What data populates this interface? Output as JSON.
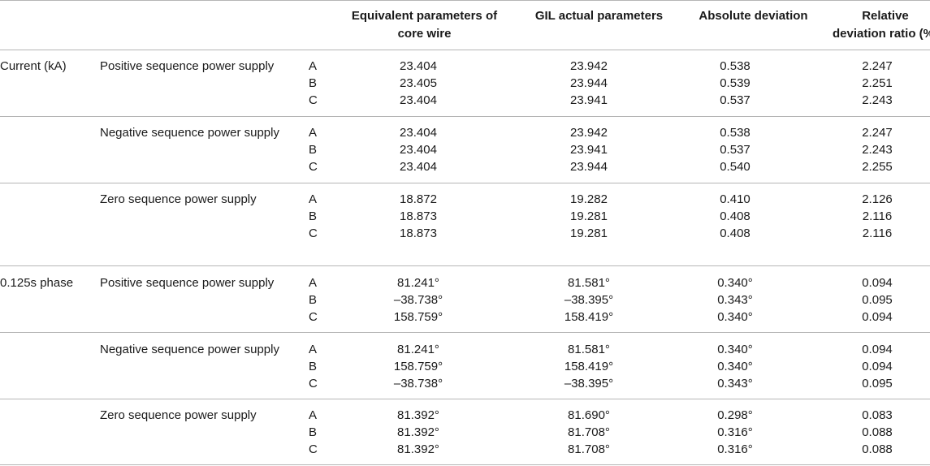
{
  "headers": {
    "equivalent": [
      "Equivalent parameters of",
      "core wire"
    ],
    "gil": "GIL actual parameters",
    "absolute": "Absolute deviation",
    "relative": [
      "Relative",
      "deviation ratio (%)"
    ]
  },
  "groups": [
    {
      "label": "Current (kA)",
      "blocks": [
        {
          "label": "Positive sequence power supply",
          "rows": [
            {
              "phase": "A",
              "eq": "23.404",
              "gil": "23.942",
              "abs": "0.538",
              "rel": "2.247"
            },
            {
              "phase": "B",
              "eq": "23.405",
              "gil": "23.944",
              "abs": "0.539",
              "rel": "2.251"
            },
            {
              "phase": "C",
              "eq": "23.404",
              "gil": "23.941",
              "abs": "0.537",
              "rel": "2.243"
            }
          ]
        },
        {
          "label": "Negative sequence power supply",
          "rows": [
            {
              "phase": "A",
              "eq": "23.404",
              "gil": "23.942",
              "abs": "0.538",
              "rel": "2.247"
            },
            {
              "phase": "B",
              "eq": "23.404",
              "gil": "23.941",
              "abs": "0.537",
              "rel": "2.243"
            },
            {
              "phase": "C",
              "eq": "23.404",
              "gil": "23.944",
              "abs": "0.540",
              "rel": "2.255"
            }
          ]
        },
        {
          "label": "Zero sequence power supply",
          "rows": [
            {
              "phase": "A",
              "eq": "18.872",
              "gil": "19.282",
              "abs": "0.410",
              "rel": "2.126"
            },
            {
              "phase": "B",
              "eq": "18.873",
              "gil": "19.281",
              "abs": "0.408",
              "rel": "2.116"
            },
            {
              "phase": "C",
              "eq": "18.873",
              "gil": "19.281",
              "abs": "0.408",
              "rel": "2.116"
            }
          ]
        }
      ]
    },
    {
      "label": "0.125s phase",
      "blocks": [
        {
          "label": "Positive sequence power supply",
          "rows": [
            {
              "phase": "A",
              "eq": "81.241°",
              "gil": "81.581°",
              "abs": "0.340°",
              "rel": "0.094"
            },
            {
              "phase": "B",
              "eq": "–38.738°",
              "gil": "–38.395°",
              "abs": "0.343°",
              "rel": "0.095"
            },
            {
              "phase": "C",
              "eq": "158.759°",
              "gil": "158.419°",
              "abs": "0.340°",
              "rel": "0.094"
            }
          ]
        },
        {
          "label": "Negative sequence power supply",
          "rows": [
            {
              "phase": "A",
              "eq": "81.241°",
              "gil": "81.581°",
              "abs": "0.340°",
              "rel": "0.094"
            },
            {
              "phase": "B",
              "eq": "158.759°",
              "gil": "158.419°",
              "abs": "0.340°",
              "rel": "0.094"
            },
            {
              "phase": "C",
              "eq": "–38.738°",
              "gil": "–38.395°",
              "abs": "0.343°",
              "rel": "0.095"
            }
          ]
        },
        {
          "label": "Zero sequence power supply",
          "rows": [
            {
              "phase": "A",
              "eq": "81.392°",
              "gil": "81.690°",
              "abs": "0.298°",
              "rel": "0.083"
            },
            {
              "phase": "B",
              "eq": "81.392°",
              "gil": "81.708°",
              "abs": "0.316°",
              "rel": "0.088"
            },
            {
              "phase": "C",
              "eq": "81.392°",
              "gil": "81.708°",
              "abs": "0.316°",
              "rel": "0.088"
            }
          ]
        }
      ]
    }
  ]
}
